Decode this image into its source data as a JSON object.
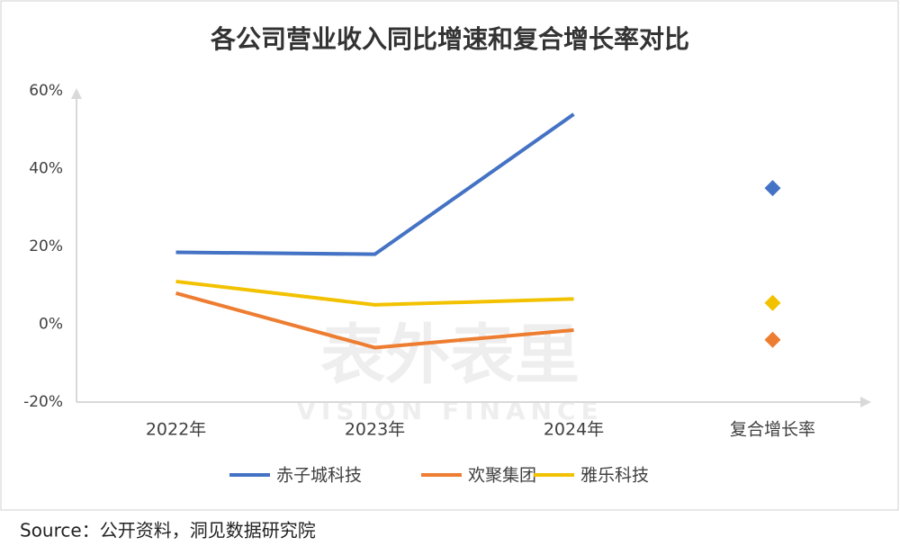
{
  "chart_data": {
    "type": "line",
    "title": "各公司营业收入同比增速和复合增长率对比",
    "watermark": "表外表里",
    "watermark_sub": "VISION FINANCE",
    "categories": [
      "2022年",
      "2023年",
      "2024年",
      "复合增长率"
    ],
    "series": [
      {
        "name": "赤子城科技",
        "color": "#4472c4",
        "values": [
          18.5,
          18,
          54,
          null
        ],
        "cagr": 35
      },
      {
        "name": "欢聚集团",
        "color": "#ed7d31",
        "values": [
          8,
          -6,
          -1.5,
          null
        ],
        "cagr": -4
      },
      {
        "name": "雅乐科技",
        "color": "#f2c200",
        "values": [
          11,
          5,
          6.5,
          null
        ],
        "cagr": 5.5
      }
    ],
    "ylim": [
      -20,
      60
    ],
    "yticks": [
      {
        "value": -20,
        "label": "-20%"
      },
      {
        "value": 0,
        "label": "0%"
      },
      {
        "value": 20,
        "label": "20%"
      },
      {
        "value": 40,
        "label": "40%"
      },
      {
        "value": 60,
        "label": "60%"
      }
    ],
    "grid": false,
    "legend": "bottom",
    "source": "Source：公开资料，洞见数据研究院"
  }
}
